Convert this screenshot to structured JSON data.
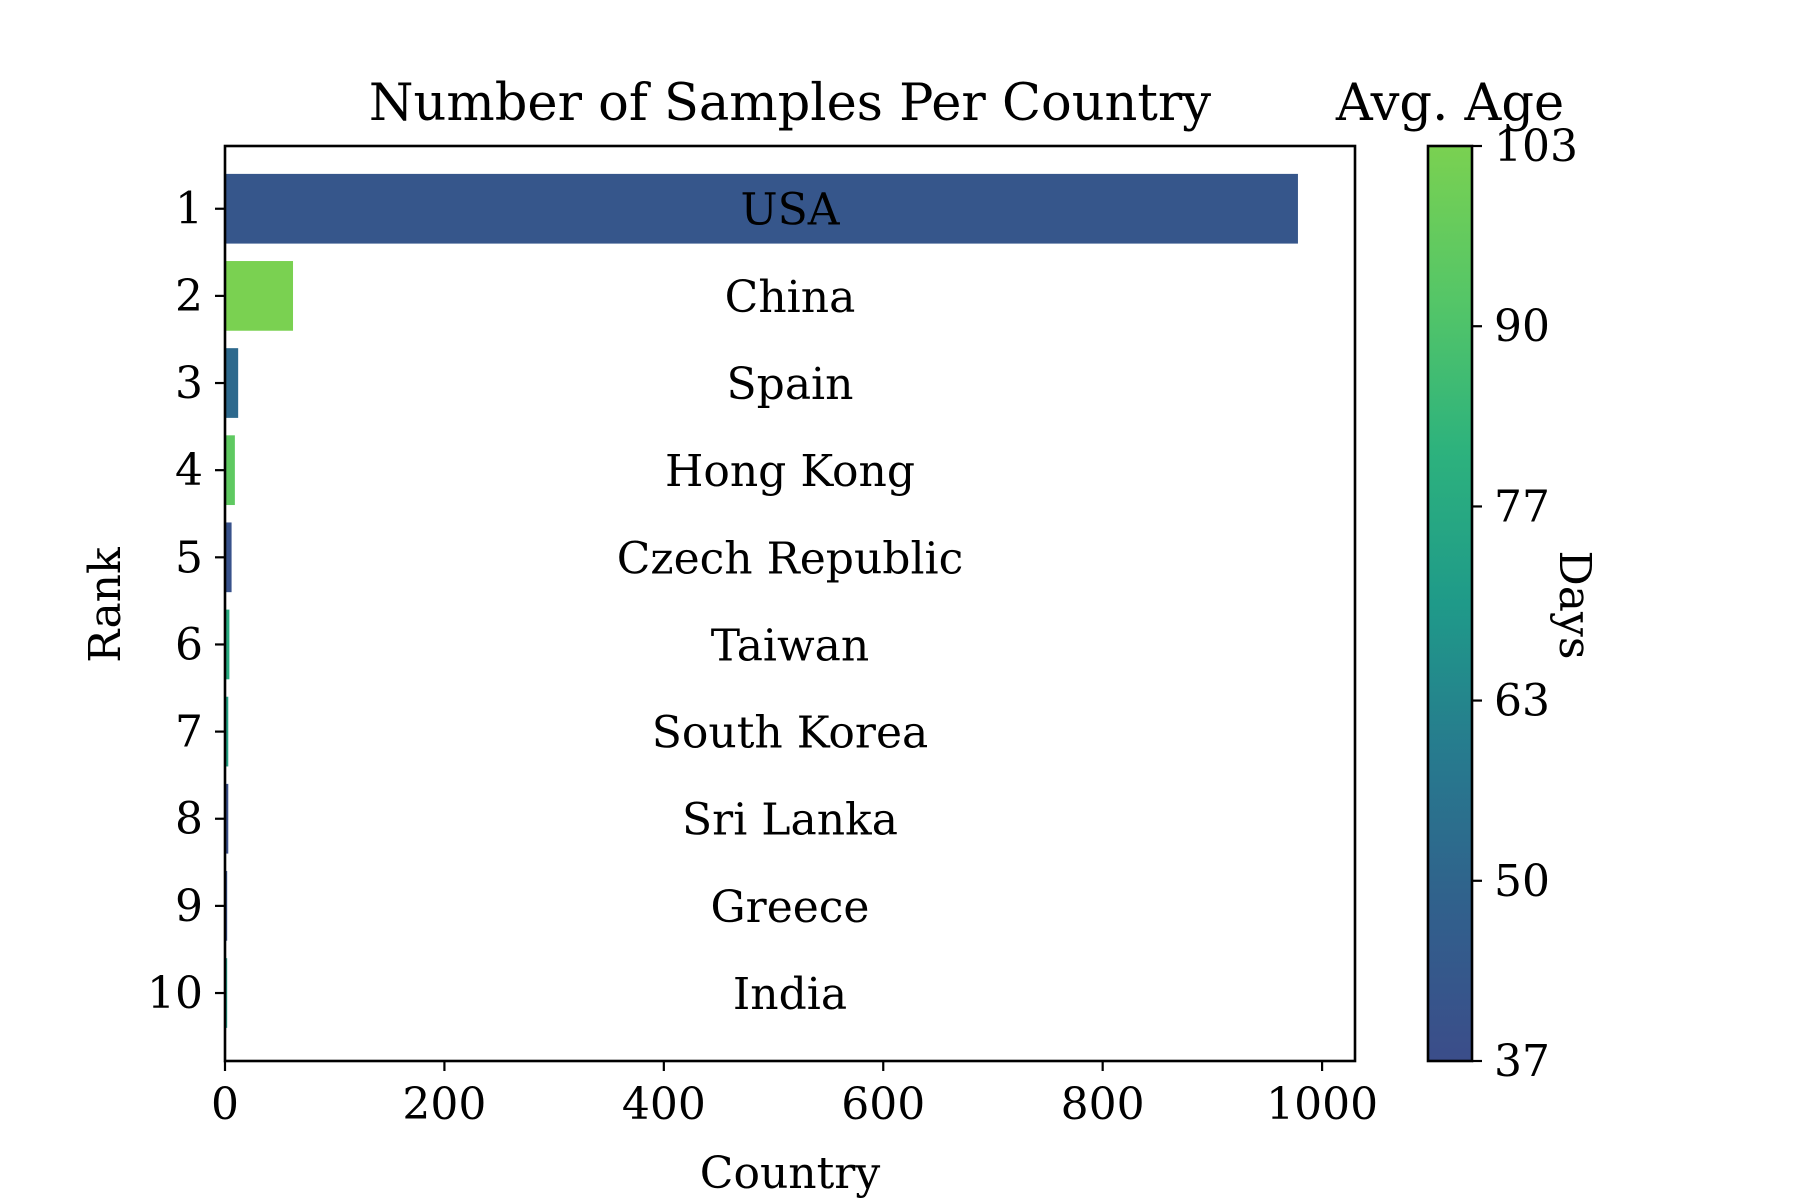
{
  "chart_data": {
    "type": "bar",
    "orientation": "horizontal",
    "title": "Number of Samples Per Country",
    "xlabel": "Country",
    "ylabel": "Rank",
    "xlim": [
      0,
      1030
    ],
    "xticks": [
      "0",
      "200",
      "400",
      "600",
      "800",
      "1000"
    ],
    "xtick_values": [
      0,
      200,
      400,
      600,
      800,
      1000
    ],
    "grid": false,
    "categories": [
      "1",
      "2",
      "3",
      "4",
      "5",
      "6",
      "7",
      "8",
      "9",
      "10"
    ],
    "countries": [
      "USA",
      "China",
      "Spain",
      "Hong Kong",
      "Czech Republic",
      "Taiwan",
      "South Korea",
      "Sri Lanka",
      "Greece",
      "India"
    ],
    "values": [
      978,
      62,
      12,
      9,
      6,
      4,
      3,
      3,
      2,
      2
    ],
    "avg_age_days": [
      42,
      103,
      52,
      95,
      40,
      78,
      74,
      38,
      40,
      72
    ],
    "colorbar": {
      "title": "Avg. Age",
      "label": "Days",
      "range": [
        37,
        103
      ],
      "ticks": [
        "103",
        "90",
        "77",
        "63",
        "50",
        "37"
      ],
      "tick_values": [
        103,
        90,
        77,
        63,
        50,
        37
      ],
      "colormap": [
        "#3b4d8a",
        "#31608c",
        "#277a8e",
        "#1f9a89",
        "#2db27d",
        "#55c667",
        "#7ad151"
      ]
    }
  }
}
